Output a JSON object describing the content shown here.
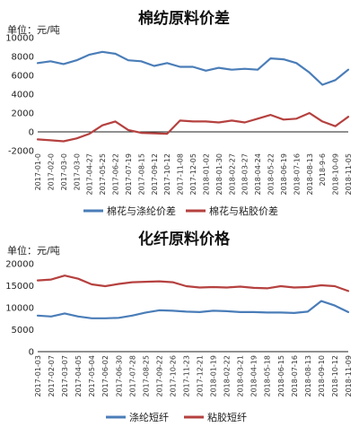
{
  "chart_data": [
    {
      "type": "line",
      "title": "棉纺原料价差",
      "unit": "单位：元/吨",
      "ylim": [
        -2000,
        10000
      ],
      "yticks": [
        "10000",
        "8000",
        "6000",
        "4000",
        "2000",
        "0",
        "-2000"
      ],
      "ytick_values": [
        10000,
        8000,
        6000,
        4000,
        2000,
        0,
        -2000
      ],
      "x": [
        "2017-01-0",
        "2017-02-0",
        "2017-03-0",
        "2017-03-0",
        "2017-04-27",
        "2017-05-25",
        "2017-06-22",
        "2017-07-19",
        "2017-08-15",
        "2017-09-12",
        "2017-10-12",
        "2017-11-08",
        "2017-12-05",
        "2018-01-02",
        "2018-01-30",
        "2018-02-27",
        "2018-03-27",
        "2018-04-24",
        "2018-05-22",
        "2018-06-19",
        "2018-07-16",
        "2018-08-13",
        "2018-9-6",
        "2018-10-09",
        "2018-11-05"
      ],
      "grid": false,
      "legend": "bottom",
      "series": [
        {
          "name": "棉花与涤纶价差",
          "color": "#4a7db8",
          "values": [
            7300,
            7500,
            7200,
            7600,
            8200,
            8500,
            8300,
            7600,
            7500,
            7000,
            7300,
            6900,
            6900,
            6500,
            6800,
            6600,
            6700,
            6600,
            7800,
            7700,
            7300,
            6300,
            5000,
            5500,
            6600
          ]
        },
        {
          "name": "棉花与粘胶价差",
          "color": "#b5413f",
          "values": [
            -800,
            -900,
            -1000,
            -700,
            -200,
            700,
            1100,
            200,
            -100,
            -150,
            -200,
            1200,
            1100,
            1100,
            1000,
            1200,
            1000,
            1400,
            1800,
            1300,
            1400,
            2000,
            1100,
            600,
            1600
          ]
        }
      ]
    },
    {
      "type": "line",
      "title": "化纤原料价格",
      "unit": "单位：元/吨",
      "ylim": [
        0,
        20000
      ],
      "yticks": [
        "20000",
        "15000",
        "10000",
        "5000",
        "0"
      ],
      "ytick_values": [
        20000,
        15000,
        10000,
        5000,
        0
      ],
      "x": [
        "2017-01-03",
        "2017-02-07",
        "2017-03-07",
        "2017-04-05",
        "2017-05-04",
        "2017-06-02",
        "2017-06-30",
        "2017-07-28",
        "2017-08-25",
        "2017-09-22",
        "2017-10-26",
        "2017-11-23",
        "2017-12-21",
        "2018-01-19",
        "2018-02-22",
        "2018-03-21",
        "2018-04-19",
        "2018-05-18",
        "2018-06-15",
        "2018-07-16",
        "2018-08-13",
        "2018-09-10",
        "2018-10-12",
        "2018-11-09"
      ],
      "grid": false,
      "legend": "bottom",
      "series": [
        {
          "name": "涤纶短纤",
          "color": "#4a7db8",
          "values": [
            8200,
            8000,
            8700,
            8000,
            7600,
            7600,
            7700,
            8200,
            8900,
            9400,
            9300,
            9100,
            9000,
            9300,
            9200,
            9000,
            9000,
            8900,
            8900,
            8800,
            9100,
            11500,
            10500,
            9000
          ]
        },
        {
          "name": "粘胶短纤",
          "color": "#b5413f",
          "values": [
            16200,
            16400,
            17300,
            16600,
            15300,
            14900,
            15400,
            15800,
            15900,
            16000,
            15800,
            14900,
            14600,
            14700,
            14600,
            14800,
            14500,
            14400,
            14900,
            14600,
            14700,
            15100,
            14900,
            13800
          ]
        }
      ]
    }
  ]
}
